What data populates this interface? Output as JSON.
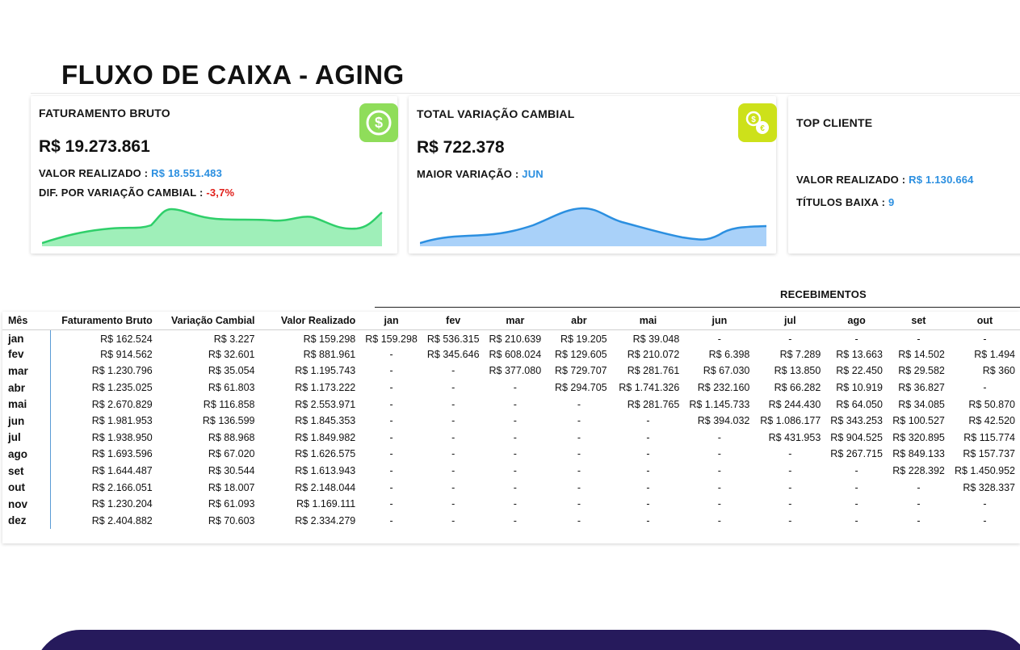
{
  "header": {
    "title": "FLUXO DE CAIXA - AGING"
  },
  "cards": {
    "faturamento": {
      "label": "FATURAMENTO BRUTO",
      "value": "R$ 19.273.861",
      "realizado_label": "VALOR REALIZADO : ",
      "realizado_value": "R$ 18.551.483",
      "dif_label": "DIF. POR VARIAÇÃO CAMBIAL : ",
      "dif_value": "-3,7%",
      "icon": "dollar-coin-icon",
      "icon_color": "#8fdd5a",
      "spark_color": "#7ee09a"
    },
    "variacao": {
      "label": "TOTAL VARIAÇÃO CAMBIAL",
      "value": "R$ 722.378",
      "maior_label": "MAIOR VARIAÇÃO : ",
      "maior_value": "JUN",
      "icon": "currency-exchange-icon",
      "icon_color": "#cde11a",
      "spark_color": "#8ec2f5"
    },
    "top_cliente": {
      "label": "TOP CLIENTE",
      "realizado_label": "VALOR REALIZADO : ",
      "realizado_value": "R$ 1.130.664",
      "titulos_label": "TÍTULOS BAIXA : ",
      "titulos_value": "9"
    }
  },
  "table": {
    "section_title": "RECEBIMENTOS",
    "headers": [
      "Mês",
      "Faturamento Bruto",
      "Variação Cambial",
      "Valor Realizado",
      "jan",
      "fev",
      "mar",
      "abr",
      "mai",
      "jun",
      "jul",
      "ago",
      "set",
      "out"
    ],
    "rows": [
      [
        "jan",
        "R$ 162.524",
        "R$ 3.227",
        "R$ 159.298",
        "R$ 159.298",
        "R$ 536.315",
        "R$ 210.639",
        "R$ 19.205",
        "R$ 39.048",
        "-",
        "-",
        "-",
        "-",
        "-"
      ],
      [
        "fev",
        "R$ 914.562",
        "R$ 32.601",
        "R$ 881.961",
        "-",
        "R$ 345.646",
        "R$ 608.024",
        "R$ 129.605",
        "R$ 210.072",
        "R$ 6.398",
        "R$ 7.289",
        "R$ 13.663",
        "R$ 14.502",
        "R$ 1.494"
      ],
      [
        "mar",
        "R$ 1.230.796",
        "R$ 35.054",
        "R$ 1.195.743",
        "-",
        "-",
        "R$ 377.080",
        "R$ 729.707",
        "R$ 281.761",
        "R$ 67.030",
        "R$ 13.850",
        "R$ 22.450",
        "R$ 29.582",
        "R$ 360"
      ],
      [
        "abr",
        "R$ 1.235.025",
        "R$ 61.803",
        "R$ 1.173.222",
        "-",
        "-",
        "-",
        "R$ 294.705",
        "R$ 1.741.326",
        "R$ 232.160",
        "R$ 66.282",
        "R$ 10.919",
        "R$ 36.827",
        "-"
      ],
      [
        "mai",
        "R$ 2.670.829",
        "R$ 116.858",
        "R$ 2.553.971",
        "-",
        "-",
        "-",
        "-",
        "R$ 281.765",
        "R$ 1.145.733",
        "R$ 244.430",
        "R$ 64.050",
        "R$ 34.085",
        "R$ 50.870"
      ],
      [
        "jun",
        "R$ 1.981.953",
        "R$ 136.599",
        "R$ 1.845.353",
        "-",
        "-",
        "-",
        "-",
        "-",
        "R$ 394.032",
        "R$ 1.086.177",
        "R$ 343.253",
        "R$ 100.527",
        "R$ 42.520"
      ],
      [
        "jul",
        "R$ 1.938.950",
        "R$ 88.968",
        "R$ 1.849.982",
        "-",
        "-",
        "-",
        "-",
        "-",
        "-",
        "R$ 431.953",
        "R$ 904.525",
        "R$ 320.895",
        "R$ 115.774"
      ],
      [
        "ago",
        "R$ 1.693.596",
        "R$ 67.020",
        "R$ 1.626.575",
        "-",
        "-",
        "-",
        "-",
        "-",
        "-",
        "-",
        "R$ 267.715",
        "R$ 849.133",
        "R$ 157.737"
      ],
      [
        "set",
        "R$ 1.644.487",
        "R$ 30.544",
        "R$ 1.613.943",
        "-",
        "-",
        "-",
        "-",
        "-",
        "-",
        "-",
        "-",
        "R$ 228.392",
        "R$ 1.450.952"
      ],
      [
        "out",
        "R$ 2.166.051",
        "R$ 18.007",
        "R$ 2.148.044",
        "-",
        "-",
        "-",
        "-",
        "-",
        "-",
        "-",
        "-",
        "-",
        "R$ 328.337"
      ],
      [
        "nov",
        "R$ 1.230.204",
        "R$ 61.093",
        "R$ 1.169.111",
        "-",
        "-",
        "-",
        "-",
        "-",
        "-",
        "-",
        "-",
        "-",
        "-"
      ],
      [
        "dez",
        "R$ 2.404.882",
        "R$ 70.603",
        "R$ 2.334.279",
        "-",
        "-",
        "-",
        "-",
        "-",
        "-",
        "-",
        "-",
        "-",
        "-"
      ]
    ]
  },
  "colors": {
    "accent_blue": "#2b8fe0",
    "negative_red": "#e0201b",
    "footer_bar": "#261a5c"
  }
}
